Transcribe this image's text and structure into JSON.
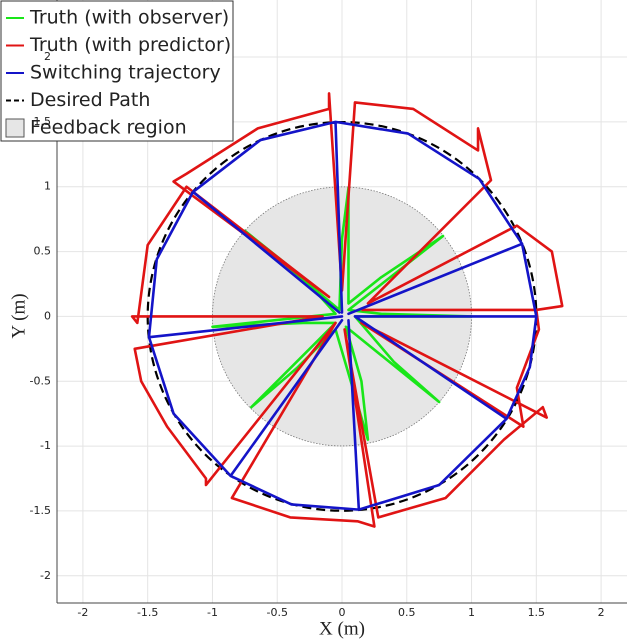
{
  "chart_data": {
    "type": "line",
    "xlabel": "X (m)",
    "ylabel": "Y (m)",
    "xlim": [
      -2.2,
      2.2
    ],
    "ylim": [
      -2.21,
      2.44
    ],
    "xticks": [
      -2,
      -1.5,
      -1,
      -0.5,
      0,
      0.5,
      1,
      1.5,
      2
    ],
    "yticks": [
      -2,
      -1.5,
      -1,
      -0.5,
      0,
      0.5,
      1,
      1.5,
      2
    ],
    "grid": true,
    "legend": "upper left",
    "series": [
      {
        "name": "Truth (with observer)",
        "color": "#19e619",
        "x": [
          0.1,
          1,
          0.3,
          0.05,
          0.78,
          0.3,
          0.05,
          0.05,
          0,
          -0.02,
          -0.75,
          -0.3,
          -0.05,
          -1,
          -0.3,
          -0.05,
          -0.7,
          -0.35,
          -0.05,
          0.2,
          0.15,
          0.03,
          0.75,
          0.4,
          0.1
        ],
        "values": [
          0,
          0,
          0.02,
          0.05,
          0.62,
          0.3,
          0.1,
          0.99,
          0.6,
          0.05,
          0.66,
          0.3,
          0.02,
          -0.08,
          -0.05,
          -0.05,
          -0.7,
          -0.4,
          -0.1,
          -0.95,
          -0.5,
          -0.08,
          -0.66,
          -0.35,
          0
        ]
      },
      {
        "name": "Truth (with predictor)",
        "color": "#e01414",
        "x": [
          0.15,
          1.5,
          1.7,
          1.62,
          1.35,
          0.2,
          1.15,
          1.05,
          1.05,
          0.55,
          0.1,
          0,
          -0.1,
          -0.1,
          -0.65,
          -1.2,
          -1.3,
          -0.1,
          -1.2,
          -1.5,
          -1.58,
          -1.62,
          -0.15,
          -1.6,
          -1.55,
          -1.35,
          -1.05,
          -1.05,
          -0.05,
          -0.85,
          -0.4,
          0.12,
          0.25,
          0.02,
          0.28,
          0.8,
          1.25,
          1.55,
          1.58,
          0.15,
          1.4,
          1.35,
          1.52,
          1.5
        ],
        "values": [
          0.05,
          0.05,
          0.08,
          0.5,
          0.7,
          0.1,
          1.05,
          1.45,
          1.28,
          1.6,
          1.65,
          0.2,
          1.72,
          1.6,
          1.45,
          1.1,
          1.04,
          0.15,
          1,
          0.55,
          -0.05,
          0,
          0,
          -0.25,
          -0.5,
          -0.85,
          -1.25,
          -1.3,
          -0.05,
          -1.4,
          -1.55,
          -1.58,
          -1.62,
          -0.1,
          -1.55,
          -1.4,
          -0.95,
          -0.7,
          -0.78,
          -0.05,
          -0.85,
          -0.55,
          -0.1,
          0.05
        ]
      },
      {
        "name": "Switching trajectory",
        "color": "#1414c8",
        "x": [
          0.1,
          1.5,
          1.39,
          0.05,
          1.39,
          1.06,
          0.51,
          -0.05,
          0,
          -0.05,
          -0.63,
          -1.15,
          -0.02,
          -1.15,
          -1.43,
          -1.49,
          0,
          -1.49,
          -1.3,
          -0.86,
          0,
          -0.86,
          -0.39,
          0.13,
          0.05,
          0.13,
          0.75,
          1.27,
          0.1,
          1.27,
          1.45,
          1.5,
          0.1
        ],
        "values": [
          0,
          0,
          0.56,
          0.02,
          0.56,
          1.06,
          1.41,
          1.5,
          0.03,
          1.5,
          1.36,
          0.96,
          0.03,
          0.96,
          0.44,
          -0.16,
          0,
          -0.16,
          -0.75,
          -1.23,
          -0.03,
          -1.23,
          -1.45,
          -1.49,
          -0.03,
          -1.49,
          -1.3,
          -0.79,
          0,
          -0.79,
          -0.39,
          0,
          0
        ]
      },
      {
        "name": "Desired Path",
        "color": "#000000",
        "dash": true,
        "shape": "circle",
        "center": [
          0,
          0
        ],
        "radius": 1.5
      },
      {
        "name": "Feedback region",
        "color": "#e6e6e6",
        "shape": "circle",
        "center": [
          0,
          0
        ],
        "radius": 1
      }
    ]
  }
}
